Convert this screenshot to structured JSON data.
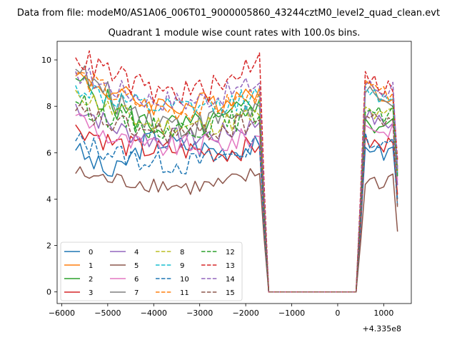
{
  "figure": {
    "suptitle": "Data from file: modeM0/AS1A06_006T01_9000005860_43244cztM0_level2_quad_clean.evt",
    "offset_label": "+4.335e8"
  },
  "chart_data": {
    "type": "line",
    "title": "Quadrant 1 module wise count rates with 100.0s bins.",
    "xlabel": "",
    "ylabel": "",
    "x_offset": 433500000,
    "xlim": [
      -6100,
      1600
    ],
    "ylim": [
      -0.5,
      10.8
    ],
    "xticks": [
      -6000,
      -5000,
      -4000,
      -3000,
      -2000,
      -1000,
      0,
      1000
    ],
    "xtick_labels": [
      "−6000",
      "−5000",
      "−4000",
      "−3000",
      "−2000",
      "−1000",
      "0",
      "1000"
    ],
    "yticks": [
      0,
      2,
      4,
      6,
      8,
      10
    ],
    "ytick_labels": [
      "0",
      "2",
      "4",
      "6",
      "8",
      "10"
    ],
    "grid": false,
    "legend": {
      "placement": "lower-left",
      "columns": 4
    },
    "x": [
      -5700,
      -5600,
      -5500,
      -5400,
      -5300,
      -5200,
      -5100,
      -5000,
      -4900,
      -4800,
      -4700,
      -4600,
      -4500,
      -4400,
      -4300,
      -4200,
      -4100,
      -4000,
      -3900,
      -3800,
      -3700,
      -3600,
      -3500,
      -3400,
      -3300,
      -3200,
      -3100,
      -3000,
      -2900,
      -2800,
      -2700,
      -2600,
      -2500,
      -2400,
      -2300,
      -2200,
      -2100,
      -2000,
      -1900,
      -1800,
      -1700,
      -1600,
      -1500,
      -1400,
      -1300,
      -1200,
      -1100,
      -1000,
      -900,
      -800,
      -700,
      -600,
      -500,
      -400,
      -300,
      -200,
      -100,
      0,
      100,
      200,
      300,
      400,
      500,
      600,
      700,
      800,
      900,
      1000,
      1100,
      1200,
      1300
    ],
    "series": [
      {
        "name": "0",
        "color": "#1f77b4",
        "dash": "solid",
        "plateau": [
          6.1,
          5.0,
          6.6,
          6.3,
          6.1,
          6.3
        ],
        "burst": [
          6.2,
          6.3,
          5.9,
          6.2,
          4.0
        ],
        "amp": 0.5
      },
      {
        "name": "1",
        "color": "#ff7f0e",
        "dash": "solid",
        "plateau": [
          9.3,
          8.6,
          8.1,
          8.0,
          8.3,
          8.8
        ],
        "burst": [
          8.9,
          8.6,
          8.4,
          8.6,
          5.1
        ],
        "amp": 0.5
      },
      {
        "name": "2",
        "color": "#2ca02c",
        "dash": "solid",
        "plateau": [
          9.2,
          8.0,
          7.2,
          7.1,
          7.3,
          8.3
        ],
        "burst": [
          7.2,
          7.1,
          7.3,
          7.4,
          5.4
        ],
        "amp": 0.6
      },
      {
        "name": "3",
        "color": "#d62728",
        "dash": "solid",
        "plateau": [
          7.2,
          6.4,
          6.1,
          6.1,
          6.0,
          6.3
        ],
        "burst": [
          6.4,
          6.4,
          6.1,
          6.7,
          4.2
        ],
        "amp": 0.5
      },
      {
        "name": "4",
        "color": "#9467bd",
        "dash": "solid",
        "plateau": [
          8.1,
          7.1,
          6.6,
          6.6,
          6.8,
          7.3
        ],
        "burst": [
          7.7,
          7.4,
          7.3,
          7.2,
          4.6
        ],
        "amp": 0.5
      },
      {
        "name": "5",
        "color": "#8c564b",
        "dash": "solid",
        "plateau": [
          5.1,
          4.8,
          4.7,
          4.5,
          4.6,
          5.1
        ],
        "burst": [
          4.8,
          4.8,
          4.5,
          5.3,
          2.6
        ],
        "amp": 0.4
      },
      {
        "name": "6",
        "color": "#e377c2",
        "dash": "solid",
        "plateau": [
          7.6,
          6.6,
          6.2,
          6.3,
          6.4,
          6.7
        ],
        "burst": [
          7.3,
          7.1,
          6.8,
          7.2,
          4.8
        ],
        "amp": 0.5
      },
      {
        "name": "7",
        "color": "#7f7f7f",
        "dash": "solid",
        "plateau": [
          9.6,
          8.3,
          7.6,
          7.1,
          7.5,
          8.0
        ],
        "burst": [
          8.6,
          8.3,
          8.1,
          8.3,
          5.0
        ],
        "amp": 0.6
      },
      {
        "name": "8",
        "color": "#bcbd22",
        "dash": "dashed",
        "plateau": [
          8.7,
          7.8,
          7.2,
          7.1,
          7.3,
          7.6
        ],
        "burst": [
          7.9,
          7.6,
          7.5,
          7.8,
          5.2
        ],
        "amp": 0.5
      },
      {
        "name": "9",
        "color": "#17becf",
        "dash": "dashed",
        "plateau": [
          8.9,
          8.3,
          7.9,
          7.9,
          8.1,
          8.4
        ],
        "burst": [
          8.7,
          8.5,
          8.3,
          8.6,
          5.0
        ],
        "amp": 0.5
      },
      {
        "name": "10",
        "color": "#1f77b4",
        "dash": "dashed",
        "plateau": [
          6.5,
          6.0,
          5.6,
          5.5,
          5.8,
          6.3
        ],
        "burst": [
          6.6,
          6.4,
          6.2,
          6.5,
          3.7
        ],
        "amp": 0.5
      },
      {
        "name": "11",
        "color": "#ff7f0e",
        "dash": "dashed",
        "plateau": [
          9.4,
          8.5,
          8.0,
          7.8,
          8.0,
          8.6
        ],
        "burst": [
          8.8,
          8.7,
          8.5,
          8.8,
          5.2
        ],
        "amp": 0.5
      },
      {
        "name": "12",
        "color": "#2ca02c",
        "dash": "dashed",
        "plateau": [
          8.2,
          7.5,
          7.1,
          7.0,
          7.3,
          7.6
        ],
        "burst": [
          8.0,
          7.8,
          7.6,
          7.9,
          4.9
        ],
        "amp": 0.5
      },
      {
        "name": "13",
        "color": "#d62728",
        "dash": "dashed",
        "plateau": [
          10.1,
          9.4,
          8.6,
          8.6,
          8.8,
          10.3
        ],
        "burst": [
          9.7,
          9.0,
          8.8,
          8.9,
          5.7
        ],
        "amp": 0.6
      },
      {
        "name": "14",
        "color": "#9467bd",
        "dash": "dashed",
        "plateau": [
          9.5,
          8.8,
          8.3,
          8.2,
          8.5,
          9.0
        ],
        "burst": [
          9.0,
          8.8,
          8.6,
          8.9,
          5.3
        ],
        "amp": 0.5
      },
      {
        "name": "15",
        "color": "#8c564b",
        "dash": "dashed",
        "plateau": [
          7.8,
          7.2,
          6.9,
          6.8,
          7.0,
          7.4
        ],
        "burst": [
          7.6,
          7.4,
          7.3,
          7.6,
          3.6
        ],
        "amp": 0.5
      }
    ]
  }
}
